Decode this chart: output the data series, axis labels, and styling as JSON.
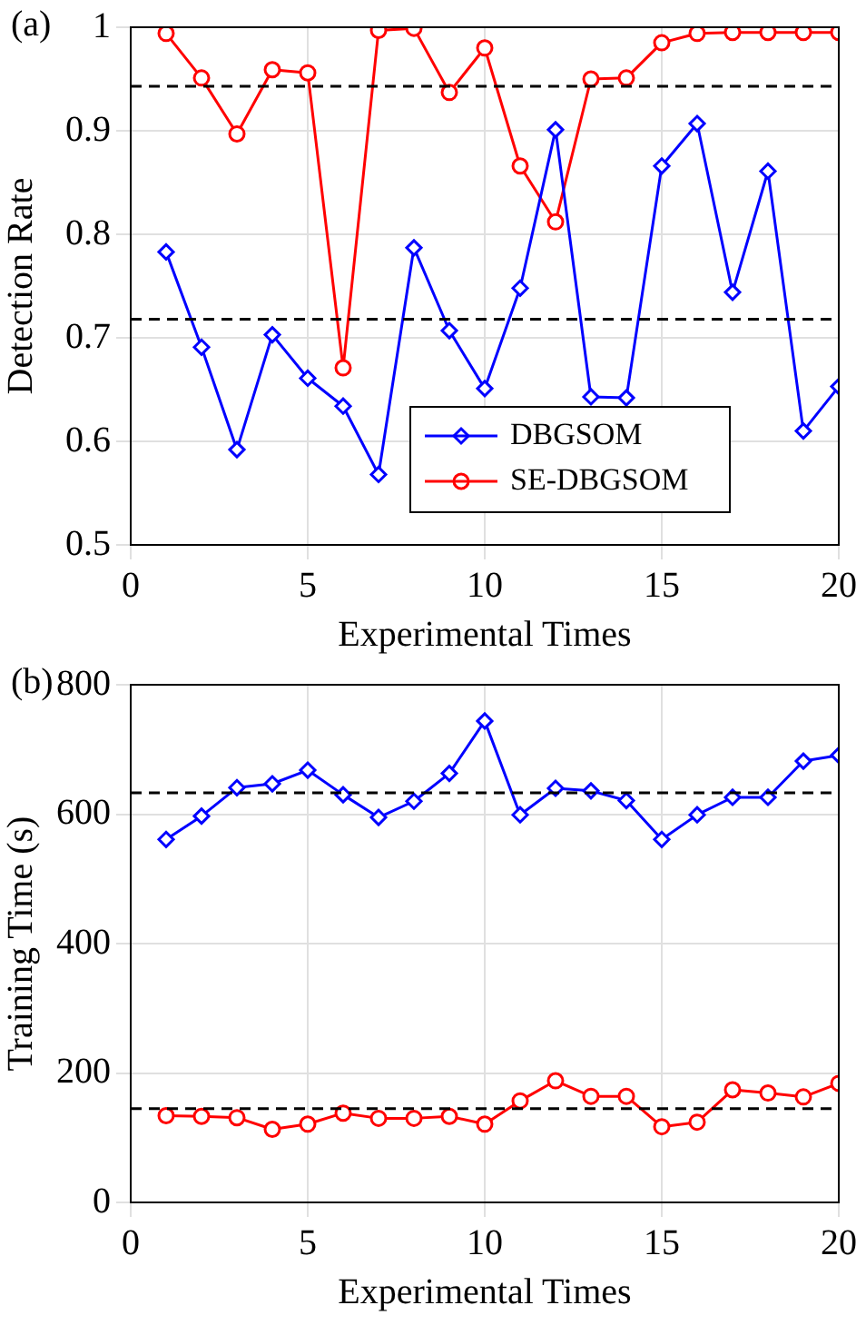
{
  "chart_data": [
    {
      "type": "line",
      "annotations": [
        "(a)"
      ],
      "xlabel": "Experimental Times",
      "ylabel": "Detection Rate",
      "x": [
        1,
        2,
        3,
        4,
        5,
        6,
        7,
        8,
        9,
        10,
        11,
        12,
        13,
        14,
        15,
        16,
        17,
        18,
        19,
        20
      ],
      "xlim": [
        0,
        20
      ],
      "xticks": [
        0,
        5,
        10,
        15,
        20
      ],
      "ylim": [
        0.5,
        1
      ],
      "yticks": [
        0.5,
        0.6,
        0.7,
        0.8,
        0.9,
        1
      ],
      "grid": true,
      "legend": "bottom right",
      "series": [
        {
          "name": "DBGSOM",
          "color": "#0000ff",
          "marker": "diamond",
          "values": [
            0.783,
            0.691,
            0.592,
            0.703,
            0.661,
            0.634,
            0.568,
            0.787,
            0.707,
            0.651,
            0.748,
            0.901,
            0.643,
            0.642,
            0.866,
            0.907,
            0.744,
            0.861,
            0.61,
            0.653
          ]
        },
        {
          "name": "SE-DBGSOM",
          "color": "#ff0000",
          "marker": "circle",
          "values": [
            0.994,
            0.951,
            0.897,
            0.959,
            0.956,
            0.671,
            0.997,
            0.999,
            0.937,
            0.98,
            0.866,
            0.812,
            0.95,
            0.951,
            0.985,
            0.994,
            0.995,
            0.995,
            0.995,
            0.995
          ]
        }
      ],
      "ref_lines": [
        {
          "axis": "y",
          "value": 0.943,
          "color": "#000000",
          "line_style": "dashed"
        },
        {
          "axis": "y",
          "value": 0.718,
          "color": "#000000",
          "line_style": "dashed"
        }
      ]
    },
    {
      "type": "line",
      "annotations": [
        "(b)"
      ],
      "xlabel": "Experimental Times",
      "ylabel": "Training Time (s)",
      "x": [
        1,
        2,
        3,
        4,
        5,
        6,
        7,
        8,
        9,
        10,
        11,
        12,
        13,
        14,
        15,
        16,
        17,
        18,
        19,
        20
      ],
      "xlim": [
        0,
        20
      ],
      "xticks": [
        0,
        5,
        10,
        15,
        20
      ],
      "ylim": [
        0,
        800
      ],
      "yticks": [
        0,
        200,
        400,
        600,
        800
      ],
      "grid": true,
      "series": [
        {
          "color": "#0000ff",
          "marker": "diamond",
          "values": [
            561,
            597,
            641,
            647,
            668,
            630,
            595,
            620,
            663,
            744,
            599,
            640,
            636,
            621,
            561,
            599,
            626,
            626,
            682,
            691
          ]
        },
        {
          "color": "#ff0000",
          "marker": "circle",
          "values": [
            134,
            133,
            131,
            113,
            121,
            138,
            130,
            130,
            133,
            121,
            157,
            188,
            164,
            164,
            117,
            124,
            174,
            169,
            163,
            184
          ]
        }
      ],
      "ref_lines": [
        {
          "axis": "y",
          "value": 633,
          "color": "#000000",
          "line_style": "dashed"
        },
        {
          "axis": "y",
          "value": 145,
          "color": "#000000",
          "line_style": "dashed"
        }
      ]
    }
  ]
}
